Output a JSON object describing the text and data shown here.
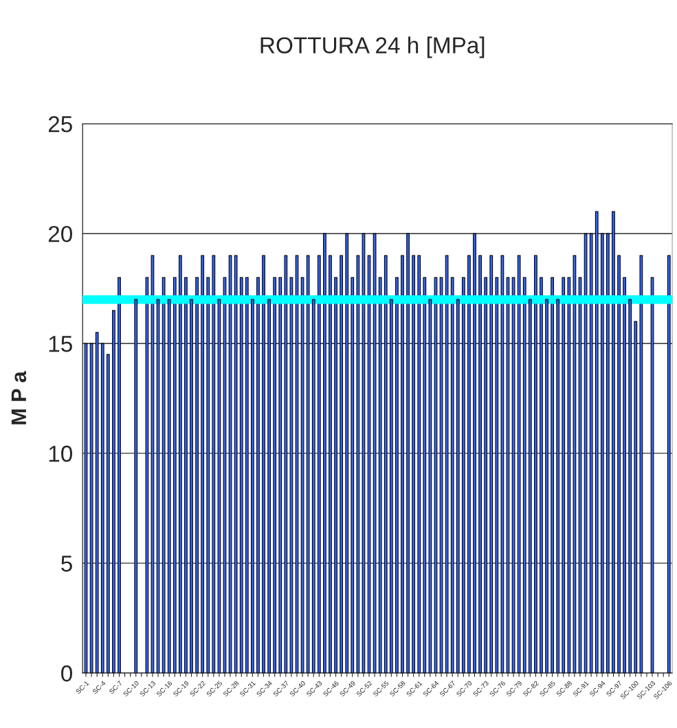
{
  "chart_data": {
    "type": "bar",
    "title": "ROTTURA 24 h [MPa]",
    "ylabel": "M P a",
    "categories": [
      "SC-1",
      null,
      null,
      "SC-4",
      null,
      null,
      "SC-7",
      null,
      null,
      "SC-10",
      null,
      null,
      "SC-13",
      null,
      null,
      "SC-16",
      null,
      null,
      "SC-19",
      null,
      null,
      "SC-22",
      null,
      null,
      "SC-25",
      null,
      null,
      "SC-28",
      null,
      null,
      "SC-31",
      null,
      null,
      "SC-34",
      null,
      null,
      "SC-37",
      null,
      null,
      "SC-40",
      null,
      null,
      "SC-43",
      null,
      null,
      "SC-46",
      null,
      null,
      "SC-49",
      null,
      null,
      "SC-52",
      null,
      null,
      "SC-55",
      null,
      null,
      "SC-58",
      null,
      null,
      "SC-61",
      null,
      null,
      "SC-64",
      null,
      null,
      "SC-67",
      null,
      null,
      "SC-70",
      null,
      null,
      "SC-73",
      null,
      null,
      "SC-76",
      null,
      null,
      "SC-79",
      null,
      null,
      "SC-82",
      null,
      null,
      "SC-85",
      null,
      null,
      "SC-88",
      null,
      null,
      "SC-91",
      null,
      null,
      "SC-94",
      null,
      null,
      "SC-97",
      null,
      null,
      "SC-100",
      null,
      null,
      "SC-103",
      null,
      null,
      "SC-106"
    ],
    "values": [
      15,
      15,
      15.5,
      15,
      14.5,
      16.5,
      18,
      null,
      null,
      17,
      null,
      18,
      19,
      17,
      18,
      17,
      18,
      19,
      18,
      17,
      18,
      19,
      18,
      19,
      17,
      18,
      19,
      19,
      18,
      18,
      17,
      18,
      19,
      17,
      18,
      18,
      19,
      18,
      19,
      18,
      19,
      17,
      19,
      20,
      19,
      18,
      19,
      20,
      18,
      19,
      20,
      19,
      20,
      18,
      19,
      17,
      18,
      19,
      20,
      19,
      19,
      18,
      17,
      18,
      18,
      19,
      18,
      17,
      18,
      19,
      20,
      19,
      18,
      19,
      18,
      19,
      18,
      18,
      19,
      18,
      17,
      19,
      18,
      17,
      18,
      17,
      18,
      18,
      19,
      18,
      20,
      20,
      21,
      20,
      20,
      21,
      19,
      18,
      17,
      16,
      19,
      null,
      18,
      null,
      null,
      19
    ],
    "color": "#3366ff",
    "ylim": [
      0,
      25
    ],
    "yticks": [
      0,
      5,
      10,
      15,
      20,
      25
    ],
    "grid": "y",
    "ref_lines": [
      {
        "axis": "y",
        "value": 17,
        "color": "#00ffff"
      }
    ]
  }
}
